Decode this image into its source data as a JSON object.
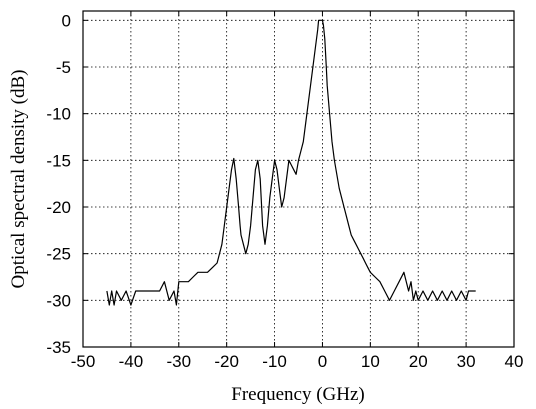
{
  "chart_data": {
    "type": "line",
    "xlabel": "Frequency (GHz)",
    "ylabel": "Optical spectral density (dB)",
    "xlim": [
      -50,
      40
    ],
    "ylim": [
      -35,
      1
    ],
    "xticks": [
      -50,
      -40,
      -30,
      -20,
      -10,
      0,
      10,
      20,
      30,
      40
    ],
    "yticks": [
      0,
      -5,
      -10,
      -15,
      -20,
      -25,
      -30,
      -35
    ],
    "grid": true,
    "series": [
      {
        "x": [
          -45,
          -44.5,
          -44,
          -43.5,
          -43,
          -42,
          -41,
          -40,
          -39,
          -38,
          -37,
          -36,
          -35,
          -34,
          -33,
          -32,
          -31,
          -30.5,
          -30,
          -29,
          -28,
          -27,
          -26,
          -25,
          -24,
          -23,
          -22,
          -21.5,
          -21,
          -20.5,
          -20,
          -19.5,
          -19,
          -18.5,
          -18,
          -17.5,
          -17.2,
          -17,
          -16.5,
          -16,
          -15.5,
          -15,
          -14.5,
          -14,
          -13.5,
          -13,
          -12.5,
          -12,
          -11.5,
          -11,
          -10.5,
          -10,
          -9.5,
          -9,
          -8.5,
          -8,
          -7.5,
          -7,
          -6.5,
          -6,
          -5.5,
          -5,
          -4.5,
          -4,
          -3.5,
          -3,
          -2.5,
          -2,
          -1.5,
          -1,
          -0.8,
          -0.5,
          -0.2,
          0,
          0.2,
          0.5,
          0.8,
          1,
          1.5,
          2,
          2.5,
          3,
          3.5,
          4,
          4.5,
          5,
          5.5,
          6,
          6.5,
          7,
          7.5,
          8,
          8.5,
          9,
          9.5,
          10,
          11,
          12,
          13,
          14,
          15,
          16,
          17,
          18,
          18.5,
          19,
          19.5,
          20,
          21,
          22,
          23,
          24,
          25,
          26,
          27,
          28,
          29,
          30,
          30.5,
          31,
          32
        ],
        "y": [
          -29,
          -30.5,
          -29,
          -30.5,
          -29,
          -30,
          -29,
          -30.5,
          -29,
          -29,
          -29,
          -29,
          -29,
          -29,
          -28,
          -30,
          -29,
          -30.5,
          -28,
          -28,
          -28,
          -27.5,
          -27,
          -27,
          -27,
          -26.5,
          -26,
          -25,
          -24,
          -22,
          -20,
          -18,
          -16,
          -14.8,
          -17,
          -20,
          -22,
          -23,
          -24,
          -25,
          -24,
          -22,
          -19,
          -16,
          -15,
          -17,
          -22,
          -24,
          -22,
          -19,
          -17,
          -15,
          -16,
          -18,
          -20,
          -19,
          -17,
          -15,
          -15.5,
          -16,
          -16.5,
          -15,
          -14,
          -13,
          -11,
          -9,
          -7,
          -5,
          -3,
          -1,
          0,
          0,
          0,
          0,
          -0.5,
          -2,
          -5,
          -7,
          -10,
          -13,
          -15,
          -16.5,
          -18,
          -19,
          -20,
          -21,
          -22,
          -23,
          -23.5,
          -24,
          -24.5,
          -25,
          -25.5,
          -26,
          -26.5,
          -27,
          -27.5,
          -28,
          -29,
          -30,
          -29,
          -28,
          -27,
          -29,
          -28,
          -30,
          -29,
          -30,
          -29,
          -30,
          -29,
          -30,
          -29,
          -30,
          -29,
          -30,
          -29,
          -30,
          -29,
          -29,
          -29
        ]
      }
    ]
  }
}
